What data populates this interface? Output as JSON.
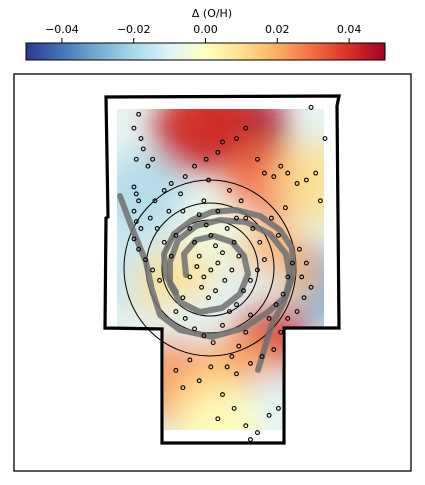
{
  "chart_data": {
    "type": "heatmap",
    "colorbar": {
      "label": "Δ (O/H)",
      "colormap": "RdYlBu_r",
      "range": [
        -0.05,
        0.05
      ],
      "ticks": [
        -0.04,
        -0.02,
        0.0,
        0.02,
        0.04
      ],
      "tick_labels": [
        "−0.04",
        "−0.02",
        "0.00",
        "0.02",
        "0.04"
      ],
      "position": "top"
    },
    "field_blobs": [
      {
        "x": 0.38,
        "y": 0.1,
        "value": 0.045
      },
      {
        "x": 0.6,
        "y": 0.1,
        "value": 0.05
      },
      {
        "x": 0.45,
        "y": 0.05,
        "value": 0.04
      },
      {
        "x": 0.68,
        "y": 0.25,
        "value": 0.03
      },
      {
        "x": 0.9,
        "y": 0.25,
        "value": 0.01
      },
      {
        "x": 0.15,
        "y": 0.28,
        "value": -0.02
      },
      {
        "x": 0.1,
        "y": 0.5,
        "value": -0.015
      },
      {
        "x": 0.5,
        "y": 0.42,
        "value": -0.005
      },
      {
        "x": 0.88,
        "y": 0.55,
        "value": -0.03
      },
      {
        "x": 0.73,
        "y": 0.5,
        "value": 0.02
      },
      {
        "x": 0.3,
        "y": 0.55,
        "value": 0.01
      },
      {
        "x": 0.62,
        "y": 0.6,
        "value": -0.01
      },
      {
        "x": 0.35,
        "y": 0.7,
        "value": -0.01
      },
      {
        "x": 0.7,
        "y": 0.72,
        "value": 0.04
      },
      {
        "x": 0.55,
        "y": 0.8,
        "value": 0.02
      },
      {
        "x": 0.28,
        "y": 0.82,
        "value": 0.025
      },
      {
        "x": 0.45,
        "y": 0.9,
        "value": 0.01
      },
      {
        "x": 0.75,
        "y": 0.9,
        "value": -0.01
      },
      {
        "x": 0.5,
        "y": 0.97,
        "value": 0.0
      }
    ],
    "points": [
      [
        0.14,
        0.05
      ],
      [
        0.12,
        0.09
      ],
      [
        0.15,
        0.12
      ],
      [
        0.13,
        0.18
      ],
      [
        0.18,
        0.2
      ],
      [
        0.12,
        0.26
      ],
      [
        0.13,
        0.28
      ],
      [
        0.14,
        0.3
      ],
      [
        0.12,
        0.33
      ],
      [
        0.13,
        0.36
      ],
      [
        0.15,
        0.38
      ],
      [
        0.12,
        0.41
      ],
      [
        0.14,
        0.44
      ],
      [
        0.17,
        0.47
      ],
      [
        0.2,
        0.5
      ],
      [
        0.23,
        0.53
      ],
      [
        0.21,
        0.3
      ],
      [
        0.25,
        0.27
      ],
      [
        0.28,
        0.25
      ],
      [
        0.32,
        0.28
      ],
      [
        0.34,
        0.23
      ],
      [
        0.38,
        0.2
      ],
      [
        0.43,
        0.18
      ],
      [
        0.48,
        0.16
      ],
      [
        0.5,
        0.13
      ],
      [
        0.56,
        0.12
      ],
      [
        0.6,
        0.09
      ],
      [
        0.65,
        0.18
      ],
      [
        0.68,
        0.22
      ],
      [
        0.72,
        0.23
      ],
      [
        0.75,
        0.2
      ],
      [
        0.78,
        0.22
      ],
      [
        0.82,
        0.25
      ],
      [
        0.86,
        0.24
      ],
      [
        0.9,
        0.22
      ],
      [
        0.92,
        0.3
      ],
      [
        0.94,
        0.12
      ],
      [
        0.88,
        0.03
      ],
      [
        0.4,
        0.34
      ],
      [
        0.43,
        0.37
      ],
      [
        0.45,
        0.4
      ],
      [
        0.47,
        0.43
      ],
      [
        0.5,
        0.45
      ],
      [
        0.48,
        0.48
      ],
      [
        0.45,
        0.5
      ],
      [
        0.42,
        0.52
      ],
      [
        0.4,
        0.46
      ],
      [
        0.38,
        0.42
      ],
      [
        0.36,
        0.38
      ],
      [
        0.52,
        0.38
      ],
      [
        0.55,
        0.42
      ],
      [
        0.57,
        0.46
      ],
      [
        0.54,
        0.5
      ],
      [
        0.51,
        0.53
      ],
      [
        0.47,
        0.56
      ],
      [
        0.44,
        0.58
      ],
      [
        0.41,
        0.55
      ],
      [
        0.39,
        0.49
      ],
      [
        0.36,
        0.52
      ],
      [
        0.33,
        0.58
      ],
      [
        0.3,
        0.62
      ],
      [
        0.34,
        0.64
      ],
      [
        0.38,
        0.67
      ],
      [
        0.42,
        0.69
      ],
      [
        0.46,
        0.71
      ],
      [
        0.5,
        0.66
      ],
      [
        0.53,
        0.62
      ],
      [
        0.56,
        0.6
      ],
      [
        0.59,
        0.56
      ],
      [
        0.62,
        0.53
      ],
      [
        0.65,
        0.5
      ],
      [
        0.68,
        0.47
      ],
      [
        0.66,
        0.42
      ],
      [
        0.63,
        0.38
      ],
      [
        0.6,
        0.35
      ],
      [
        0.62,
        0.63
      ],
      [
        0.6,
        0.68
      ],
      [
        0.57,
        0.72
      ],
      [
        0.54,
        0.75
      ],
      [
        0.52,
        0.78
      ],
      [
        0.56,
        0.8
      ],
      [
        0.62,
        0.77
      ],
      [
        0.67,
        0.75
      ],
      [
        0.72,
        0.73
      ],
      [
        0.75,
        0.68
      ],
      [
        0.78,
        0.64
      ],
      [
        0.82,
        0.62
      ],
      [
        0.85,
        0.58
      ],
      [
        0.88,
        0.55
      ],
      [
        0.84,
        0.52
      ],
      [
        0.86,
        0.48
      ],
      [
        0.83,
        0.44
      ],
      [
        0.8,
        0.48
      ],
      [
        0.78,
        0.52
      ],
      [
        0.76,
        0.57
      ],
      [
        0.73,
        0.6
      ],
      [
        0.7,
        0.64
      ],
      [
        0.45,
        0.78
      ],
      [
        0.4,
        0.82
      ],
      [
        0.33,
        0.84
      ],
      [
        0.3,
        0.79
      ],
      [
        0.36,
        0.76
      ],
      [
        0.5,
        0.86
      ],
      [
        0.55,
        0.9
      ],
      [
        0.48,
        0.93
      ],
      [
        0.6,
        0.95
      ],
      [
        0.65,
        0.97
      ],
      [
        0.62,
        0.99
      ],
      [
        0.7,
        0.92
      ],
      [
        0.74,
        0.9
      ],
      [
        0.25,
        0.42
      ],
      [
        0.22,
        0.38
      ],
      [
        0.19,
        0.35
      ],
      [
        0.28,
        0.46
      ],
      [
        0.3,
        0.4
      ],
      [
        0.33,
        0.33
      ],
      [
        0.71,
        0.35
      ],
      [
        0.74,
        0.4
      ],
      [
        0.77,
        0.32
      ],
      [
        0.2,
        0.18
      ],
      [
        0.16,
        0.15
      ],
      [
        0.44,
        0.24
      ],
      [
        0.53,
        0.27
      ],
      [
        0.58,
        0.3
      ],
      [
        0.27,
        0.33
      ],
      [
        0.42,
        0.3
      ],
      [
        0.48,
        0.33
      ],
      [
        0.56,
        0.35
      ]
    ],
    "annotation": "spiral arm tracks and concentric ellipses overlaid",
    "grid": false
  }
}
